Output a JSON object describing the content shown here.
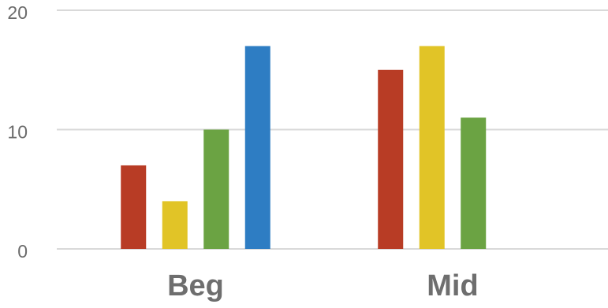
{
  "chart_data": {
    "type": "bar",
    "title": "",
    "xlabel": "",
    "ylabel": "",
    "categories": [
      "Beg",
      "Mid"
    ],
    "ylim": [
      0,
      20
    ],
    "yticks": [
      "0",
      "10",
      "20"
    ],
    "grid": true,
    "legend": "none",
    "series": [
      {
        "color": "#b83c25",
        "values": [
          7,
          15
        ]
      },
      {
        "color": "#e1c427",
        "values": [
          4,
          17
        ]
      },
      {
        "color": "#6ba343",
        "values": [
          10,
          11
        ]
      },
      {
        "color": "#2e7dc3",
        "values": [
          17,
          null
        ]
      }
    ]
  }
}
